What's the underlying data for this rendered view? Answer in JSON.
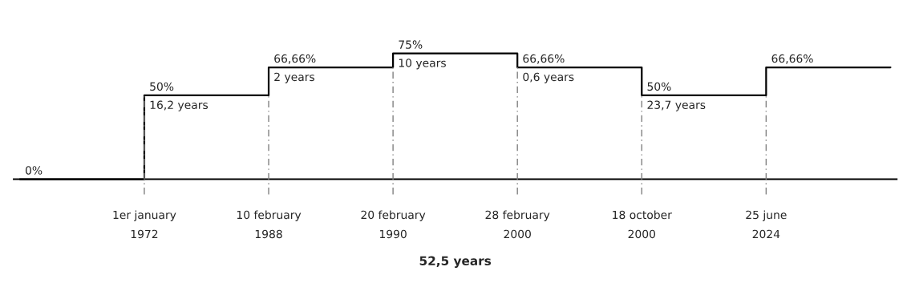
{
  "chart_data": {
    "type": "step",
    "categories": [
      null,
      "1er january\n1972",
      "10 february\n1988",
      "20 february\n1990",
      "28 february\n2000",
      "18 october\n2000",
      "25 june\n2024",
      null
    ],
    "values": [
      0,
      50,
      66.66,
      75,
      66.66,
      50,
      66.66,
      66.66
    ],
    "value_labels": [
      "0%",
      "50%",
      "66,66%",
      "75%",
      "66,66%",
      "50%",
      "66,66%",
      null
    ],
    "color": "#000000",
    "xlabel": "52,5 years",
    "annotations": [
      {
        "text": "16,2 years",
        "x": "1er january\n1972",
        "y": 50
      },
      {
        "text": "2 years",
        "x": "10 february\n1988",
        "y": 66.66
      },
      {
        "text": "10 years",
        "x": "20 february\n1990",
        "y": 75
      },
      {
        "text": "0,6 years",
        "x": "28 february\n2000",
        "y": 66.66
      },
      {
        "text": "23,7 years",
        "x": "18 october\n2000",
        "y": 50
      }
    ],
    "ref_lines": [
      {
        "axis": "x",
        "value": "1er january\n1972",
        "color": "#808080",
        "line_style": "dashed"
      },
      {
        "axis": "x",
        "value": "10 february\n1988",
        "color": "#808080",
        "line_style": "dashed"
      },
      {
        "axis": "x",
        "value": "20 february\n1990",
        "color": "#808080",
        "line_style": "dashed"
      },
      {
        "axis": "x",
        "value": "28 february\n2000",
        "color": "#808080",
        "line_style": "dashed"
      },
      {
        "axis": "x",
        "value": "18 october\n2000",
        "color": "#808080",
        "line_style": "dashed"
      },
      {
        "axis": "x",
        "value": "25 june\n2024",
        "color": "#808080",
        "line_style": "dashed"
      }
    ],
    "tick_labels": "x",
    "grid": false,
    "legend": false
  }
}
